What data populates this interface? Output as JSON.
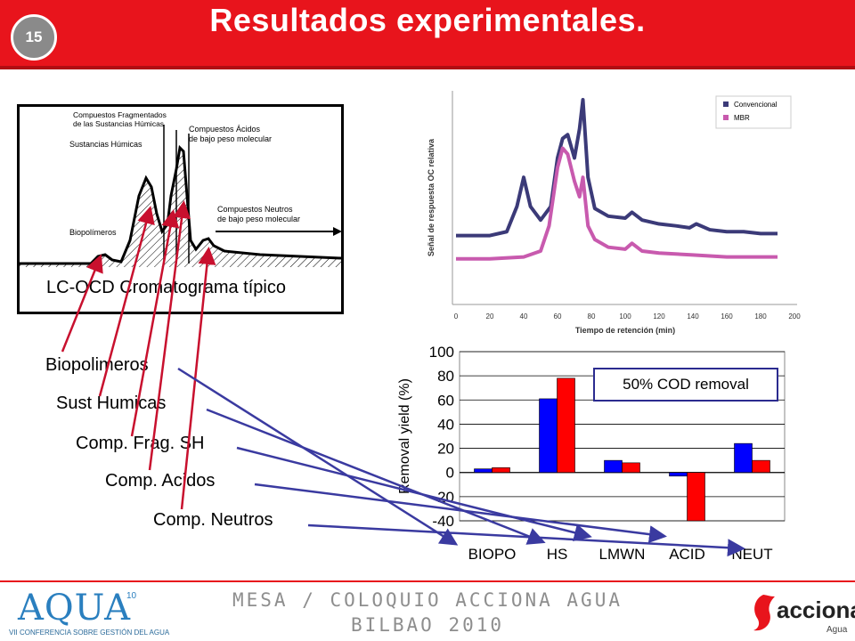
{
  "header": {
    "slide_number": "15",
    "title": "Resultados experimentales."
  },
  "chromatogram": {
    "caption": "LC-OCD Cromatograma típico",
    "annotations": {
      "fragmented": "Compuestos Fragmentados",
      "fragmented2": "de las Sustancias Húmicas",
      "humic": "Sustancias Húmicas",
      "acids": "Compuestos Ácidos",
      "acids2": "de bajo peso molecular",
      "neutral": "Compuestos Neutros",
      "neutral2": "de bajo peso molecular",
      "biopolymers": "Biopolímeros"
    }
  },
  "labels": {
    "biopolimeros": "Biopolimeros",
    "sust_humicas": "Sust Humicas",
    "comp_frag": "Comp. Frag. SH",
    "comp_acidos": "Comp. Acidos",
    "comp_neutros": "Comp. Neutros"
  },
  "cod_note": "50% COD removal",
  "chart_data": [
    {
      "type": "line",
      "xlabel": "Tiempo de retención (min)",
      "ylabel": "Señal de respuesta OC relativa",
      "xlim": [
        0,
        200
      ],
      "xticks": [
        0,
        20,
        40,
        60,
        80,
        100,
        120,
        140,
        160,
        180,
        200
      ],
      "legend_position": "top-right",
      "series": [
        {
          "name": "Convencional",
          "color": "#3b3a78",
          "x": [
            0,
            20,
            30,
            36,
            40,
            44,
            50,
            56,
            60,
            63,
            66,
            70,
            73,
            75,
            78,
            82,
            90,
            100,
            104,
            110,
            120,
            130,
            138,
            142,
            150,
            160,
            170,
            180,
            190
          ],
          "y": [
            0.3,
            0.3,
            0.32,
            0.45,
            0.6,
            0.45,
            0.38,
            0.45,
            0.7,
            0.8,
            0.82,
            0.7,
            0.85,
            1.0,
            0.6,
            0.44,
            0.4,
            0.39,
            0.42,
            0.38,
            0.36,
            0.35,
            0.34,
            0.36,
            0.33,
            0.32,
            0.32,
            0.31,
            0.31
          ]
        },
        {
          "name": "MBR",
          "color": "#c85aae",
          "x": [
            0,
            20,
            40,
            50,
            55,
            60,
            63,
            66,
            70,
            73,
            75,
            78,
            82,
            90,
            100,
            104,
            110,
            120,
            140,
            160,
            180,
            190
          ],
          "y": [
            0.18,
            0.18,
            0.19,
            0.22,
            0.35,
            0.65,
            0.75,
            0.72,
            0.58,
            0.5,
            0.6,
            0.35,
            0.28,
            0.24,
            0.23,
            0.26,
            0.22,
            0.21,
            0.2,
            0.19,
            0.19,
            0.19
          ]
        }
      ]
    },
    {
      "type": "bar",
      "ylabel": "Removal yield (%)",
      "ylim": [
        -40,
        100
      ],
      "yticks": [
        100,
        80,
        60,
        40,
        20,
        0,
        -20,
        -40
      ],
      "categories": [
        "BIOPO",
        "HS",
        "LMWN",
        "ACID",
        "NEUT"
      ],
      "series": [
        {
          "color": "#0000ff",
          "values": [
            3,
            61,
            10,
            -3,
            24
          ]
        },
        {
          "color": "#ff0000",
          "values": [
            4,
            78,
            8,
            -40,
            10
          ]
        }
      ]
    }
  ],
  "footer": {
    "line1": "MESA / COLOQUIO ACCIONA AGUA",
    "line2": "BILBAO 2010"
  },
  "logos": {
    "aqua": "AQUA",
    "aqua_sup": "10",
    "aqua_sub": "VII CONFERENCIA SOBRE GESTIÓN DEL AGUA",
    "acciona": "acciona",
    "acciona_sub": "Agua"
  }
}
